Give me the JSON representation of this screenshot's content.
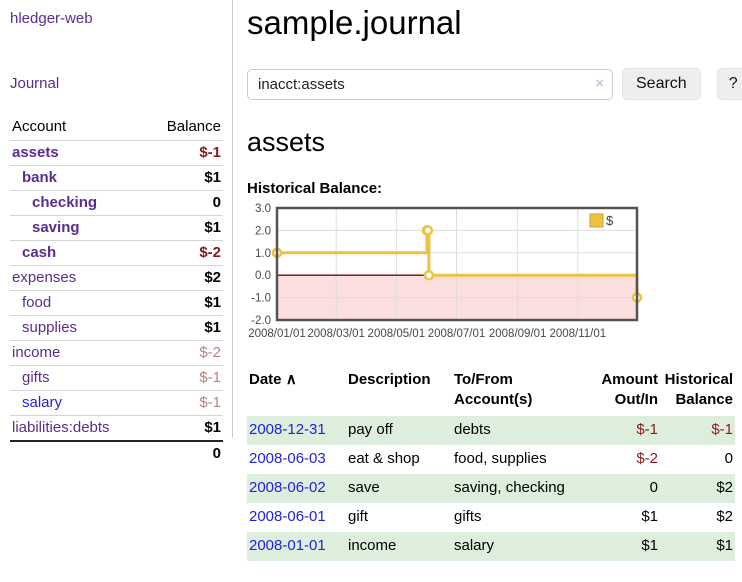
{
  "app": {
    "title": "hledger-web"
  },
  "sidebar": {
    "nav_journal": "Journal",
    "header": {
      "account": "Account",
      "balance": "Balance"
    },
    "accounts": [
      {
        "label": "assets",
        "indent": 0,
        "bold": true,
        "link_color": "purple",
        "balance": "$-1",
        "balance_class": "neg-strong"
      },
      {
        "label": "bank",
        "indent": 1,
        "bold": true,
        "link_color": "purple",
        "balance": "$1",
        "balance_class": "pos"
      },
      {
        "label": "checking",
        "indent": 2,
        "bold": true,
        "link_color": "purple",
        "balance": "0",
        "balance_class": "pos"
      },
      {
        "label": "saving",
        "indent": 2,
        "bold": true,
        "link_color": "purple",
        "balance": "$1",
        "balance_class": "pos"
      },
      {
        "label": "cash",
        "indent": 1,
        "bold": true,
        "link_color": "purple",
        "balance": "$-2",
        "balance_class": "neg-strong"
      },
      {
        "label": "expenses",
        "indent": 0,
        "bold": false,
        "link_color": "purple",
        "balance": "$2",
        "balance_class": "pos"
      },
      {
        "label": "food",
        "indent": 1,
        "bold": false,
        "link_color": "purple",
        "balance": "$1",
        "balance_class": "pos"
      },
      {
        "label": "supplies",
        "indent": 1,
        "bold": false,
        "link_color": "purple",
        "balance": "$1",
        "balance_class": "pos"
      },
      {
        "label": "income",
        "indent": 0,
        "bold": false,
        "link_color": "purple",
        "balance": "$-2",
        "balance_class": "neg-light"
      },
      {
        "label": "gifts",
        "indent": 1,
        "bold": false,
        "link_color": "purple",
        "balance": "$-1",
        "balance_class": "neg-light"
      },
      {
        "label": "salary",
        "indent": 1,
        "bold": false,
        "link_color": "blue",
        "balance": "$-1",
        "balance_class": "neg-light"
      },
      {
        "label": "liabilities:debts",
        "indent": 0,
        "bold": false,
        "link_color": "purple",
        "balance": "$1",
        "balance_class": "pos"
      }
    ],
    "total": "0"
  },
  "header": {
    "title": "sample.journal"
  },
  "search": {
    "value": "inacct:assets",
    "clear_icon": "×",
    "button_label": "Search",
    "help_label": "?"
  },
  "section": {
    "heading": "assets",
    "chart_label": "Historical Balance:"
  },
  "chart_data": {
    "type": "line",
    "step": true,
    "title": "Historical Balance",
    "legend": "$",
    "legend_position": "top-right",
    "series": [
      {
        "name": "$",
        "color": "#EDC240",
        "points": [
          [
            "2008-01-01",
            1
          ],
          [
            "2008-06-01",
            2
          ],
          [
            "2008-06-02",
            2
          ],
          [
            "2008-06-03",
            0
          ],
          [
            "2008-12-31",
            -1
          ]
        ]
      }
    ],
    "xlim": [
      "2008-01-01",
      "2008-12-31"
    ],
    "ylim": [
      -2,
      3
    ],
    "yticks": [
      3.0,
      2.0,
      1.0,
      0.0,
      -1.0,
      -2.0
    ],
    "xticks": [
      "2008/01/01",
      "2008/03/01",
      "2008/05/01",
      "2008/07/01",
      "2008/09/01",
      "2008/11/01"
    ],
    "grid": true,
    "colors": {
      "negative_fill": "#fbdede",
      "zero_line": "#8b0000",
      "grid": "#dddddd",
      "border": "#545454",
      "tick_text": "#494949"
    }
  },
  "table": {
    "headers": {
      "date": "Date",
      "sort_indicator": "∧",
      "description": "Description",
      "accounts": "To/From Account(s)",
      "amount": "Amount Out/In",
      "balance": "Historical Balance"
    },
    "rows": [
      {
        "date": "2008-12-31",
        "description": "pay off",
        "accounts": "debts",
        "amount": "$-1",
        "amount_neg": true,
        "balance": "$-1",
        "balance_neg": true,
        "shade": "green"
      },
      {
        "date": "2008-06-03",
        "description": "eat & shop",
        "accounts": "food, supplies",
        "amount": "$-2",
        "amount_neg": true,
        "balance": "0",
        "balance_neg": false,
        "shade": "white"
      },
      {
        "date": "2008-06-02",
        "description": "save",
        "accounts": "saving, checking",
        "amount": "0",
        "amount_neg": false,
        "balance": "$2",
        "balance_neg": false,
        "shade": "green"
      },
      {
        "date": "2008-06-01",
        "description": "gift",
        "accounts": "gifts",
        "amount": "$1",
        "amount_neg": false,
        "balance": "$2",
        "balance_neg": false,
        "shade": "white"
      },
      {
        "date": "2008-01-01",
        "description": "income",
        "accounts": "salary",
        "amount": "$1",
        "amount_neg": false,
        "balance": "$1",
        "balance_neg": false,
        "shade": "green"
      }
    ]
  }
}
